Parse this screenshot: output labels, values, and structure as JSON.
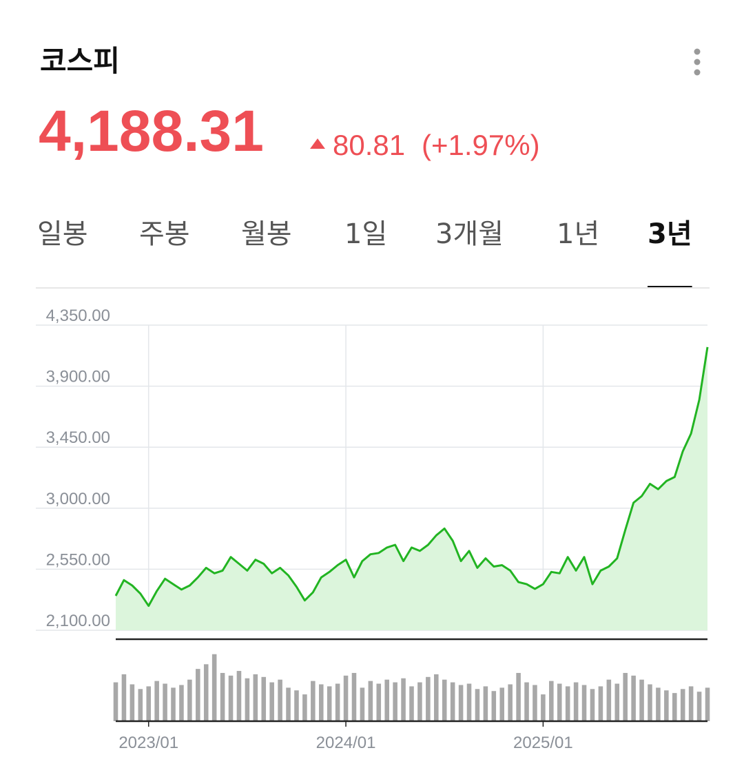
{
  "header": {
    "title": "코스피",
    "price": "4,188.31",
    "change": "80.81",
    "change_pct": "(+1.97%)"
  },
  "tabs": {
    "items": [
      "일봉",
      "주봉",
      "월봉",
      "1일",
      "3개월",
      "1년",
      "3년"
    ],
    "active": 6
  },
  "chart_data": [
    {
      "type": "area",
      "categories": [
        null,
        null,
        null,
        null,
        "2023/01",
        null,
        null,
        null,
        null,
        null,
        null,
        null,
        null,
        null,
        null,
        null,
        null,
        null,
        null,
        null,
        null,
        null,
        null,
        null,
        null,
        null,
        null,
        null,
        "2024/01",
        null,
        null,
        null,
        null,
        null,
        null,
        null,
        null,
        null,
        null,
        null,
        null,
        null,
        null,
        null,
        null,
        null,
        null,
        null,
        null,
        null,
        null,
        null,
        "2025/01",
        null,
        null,
        null,
        null,
        null,
        null,
        null,
        null,
        null,
        null,
        null,
        null,
        null,
        null,
        null,
        null,
        null,
        null,
        null,
        null
      ],
      "series": [
        {
          "color": "#22b422",
          "fill": "#dcf5dc",
          "values": [
            2354,
            2470,
            2430,
            2370,
            2280,
            2390,
            2480,
            2440,
            2400,
            2430,
            2490,
            2560,
            2520,
            2540,
            2640,
            2590,
            2540,
            2620,
            2590,
            2520,
            2560,
            2505,
            2420,
            2320,
            2380,
            2490,
            2530,
            2580,
            2620,
            2490,
            2610,
            2660,
            2670,
            2710,
            2730,
            2610,
            2710,
            2685,
            2730,
            2800,
            2850,
            2760,
            2610,
            2685,
            2560,
            2630,
            2570,
            2580,
            2540,
            2455,
            2440,
            2405,
            2440,
            2530,
            2520,
            2640,
            2540,
            2640,
            2440,
            2540,
            2570,
            2630,
            2840,
            3040,
            3090,
            3180,
            3140,
            3200,
            3230,
            3420,
            3550,
            3800,
            4188
          ]
        }
      ],
      "ylim": [
        2100,
        4350
      ],
      "yticks": [
        {
          "value": 2100,
          "label": "2,100.00"
        },
        {
          "value": 2550,
          "label": "2,550.00"
        },
        {
          "value": 3000,
          "label": "3,000.00"
        },
        {
          "value": 3450,
          "label": "3,450.00"
        },
        {
          "value": 3900,
          "label": "3,900.00"
        },
        {
          "value": 4350,
          "label": "4,350.00"
        }
      ],
      "grid": true
    },
    {
      "type": "bar",
      "color": "#a8a8a8",
      "ylim": [
        0,
        110
      ],
      "values": [
        58,
        70,
        55,
        48,
        52,
        60,
        56,
        50,
        54,
        62,
        78,
        85,
        100,
        72,
        68,
        75,
        64,
        70,
        66,
        58,
        62,
        50,
        46,
        40,
        60,
        55,
        52,
        56,
        68,
        72,
        50,
        60,
        56,
        62,
        58,
        64,
        52,
        58,
        66,
        70,
        62,
        58,
        54,
        56,
        48,
        52,
        45,
        50,
        55,
        72,
        58,
        54,
        40,
        60,
        56,
        52,
        58,
        54,
        48,
        52,
        62,
        56,
        72,
        68,
        62,
        55,
        50,
        46,
        42,
        48,
        52,
        44,
        50
      ]
    }
  ]
}
